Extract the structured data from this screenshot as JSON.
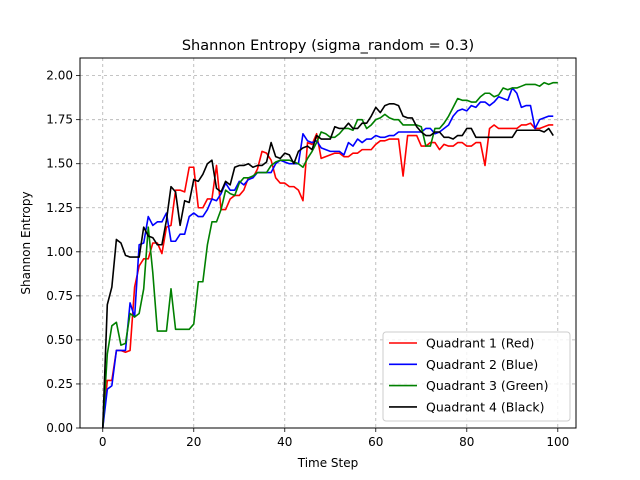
{
  "chart_data": {
    "type": "line",
    "title": "Shannon Entropy (sigma_random = 0.3)",
    "xlabel": "Time Step",
    "ylabel": "Shannon Entropy",
    "xlim": [
      -5,
      104
    ],
    "ylim": [
      0,
      2.1
    ],
    "xticks": [
      0,
      20,
      40,
      60,
      80,
      100
    ],
    "xtick_labels": [
      "0",
      "20",
      "40",
      "60",
      "80",
      "100"
    ],
    "yticks": [
      0,
      0.25,
      0.5,
      0.75,
      1.0,
      1.25,
      1.5,
      1.75,
      2.0
    ],
    "ytick_labels": [
      "0.00",
      "0.25",
      "0.50",
      "0.75",
      "1.00",
      "1.25",
      "1.50",
      "1.75",
      "2.00"
    ],
    "grid": true,
    "legend_position": "lower-right",
    "series": [
      {
        "name": "Quadrant 1 (Red)",
        "color": "#ff0000",
        "values": [
          0,
          0.27,
          0.27,
          0.44,
          0.44,
          0.43,
          0.44,
          0.8,
          0.92,
          0.96,
          0.96,
          1.05,
          1.05,
          0.99,
          1.14,
          1.15,
          1.35,
          1.35,
          1.34,
          1.48,
          1.48,
          1.25,
          1.25,
          1.3,
          1.3,
          1.49,
          1.24,
          1.24,
          1.3,
          1.32,
          1.32,
          1.35,
          1.42,
          1.42,
          1.47,
          1.57,
          1.56,
          1.52,
          1.42,
          1.39,
          1.39,
          1.37,
          1.37,
          1.35,
          1.29,
          1.62,
          1.61,
          1.67,
          1.53,
          1.54,
          1.55,
          1.56,
          1.56,
          1.54,
          1.54,
          1.56,
          1.56,
          1.58,
          1.58,
          1.58,
          1.61,
          1.63,
          1.63,
          1.64,
          1.64,
          1.64,
          1.43,
          1.66,
          1.66,
          1.66,
          1.6,
          1.6,
          1.62,
          1.62,
          1.58,
          1.61,
          1.6,
          1.6,
          1.62,
          1.62,
          1.6,
          1.6,
          1.62,
          1.62,
          1.49,
          1.7,
          1.72,
          1.7,
          1.7,
          1.7,
          1.7,
          1.7,
          1.72,
          1.72,
          1.73,
          1.7,
          1.7,
          1.71,
          1.72,
          1.72
        ]
      },
      {
        "name": "Quadrant 2 (Blue)",
        "color": "#0000ff",
        "values": [
          0,
          0.22,
          0.24,
          0.44,
          0.44,
          0.44,
          0.71,
          0.63,
          1.04,
          1.05,
          1.2,
          1.15,
          1.17,
          1.17,
          1.22,
          1.06,
          1.06,
          1.1,
          1.1,
          1.2,
          1.22,
          1.2,
          1.2,
          1.24,
          1.3,
          1.29,
          1.33,
          1.39,
          1.35,
          1.35,
          1.4,
          1.38,
          1.41,
          1.42,
          1.45,
          1.45,
          1.45,
          1.45,
          1.5,
          1.52,
          1.51,
          1.5,
          1.5,
          1.5,
          1.67,
          1.63,
          1.62,
          1.63,
          1.59,
          1.58,
          1.57,
          1.57,
          1.57,
          1.55,
          1.62,
          1.6,
          1.64,
          1.62,
          1.64,
          1.64,
          1.66,
          1.65,
          1.65,
          1.66,
          1.66,
          1.68,
          1.68,
          1.68,
          1.68,
          1.68,
          1.68,
          1.7,
          1.7,
          1.67,
          1.68,
          1.7,
          1.72,
          1.77,
          1.8,
          1.81,
          1.8,
          1.83,
          1.82,
          1.85,
          1.85,
          1.83,
          1.85,
          1.88,
          1.87,
          1.86,
          1.93,
          1.9,
          1.82,
          1.83,
          1.83,
          1.7,
          1.75,
          1.76,
          1.77,
          1.77
        ]
      },
      {
        "name": "Quadrant 3 (Green)",
        "color": "#008000",
        "values": [
          0,
          0.42,
          0.58,
          0.6,
          0.47,
          0.48,
          0.65,
          0.63,
          0.65,
          0.79,
          1.14,
          0.88,
          0.55,
          0.55,
          0.55,
          0.79,
          0.56,
          0.56,
          0.56,
          0.56,
          0.59,
          0.83,
          0.83,
          1.04,
          1.17,
          1.17,
          1.24,
          1.35,
          1.33,
          1.32,
          1.39,
          1.42,
          1.42,
          1.43,
          1.45,
          1.45,
          1.45,
          1.49,
          1.51,
          1.52,
          1.52,
          1.52,
          1.51,
          1.5,
          1.48,
          1.53,
          1.57,
          1.62,
          1.68,
          1.67,
          1.65,
          1.65,
          1.67,
          1.7,
          1.7,
          1.69,
          1.75,
          1.75,
          1.7,
          1.72,
          1.75,
          1.76,
          1.78,
          1.76,
          1.75,
          1.75,
          1.72,
          1.72,
          1.72,
          1.72,
          1.71,
          1.6,
          1.6,
          1.7,
          1.7,
          1.73,
          1.77,
          1.82,
          1.87,
          1.86,
          1.86,
          1.85,
          1.85,
          1.88,
          1.9,
          1.9,
          1.88,
          1.89,
          1.93,
          1.92,
          1.93,
          1.93,
          1.94,
          1.95,
          1.95,
          1.95,
          1.94,
          1.96,
          1.95,
          1.96,
          1.96
        ]
      },
      {
        "name": "Quadrant 4 (Black)",
        "color": "#000000",
        "values": [
          0,
          0.7,
          0.8,
          1.07,
          1.05,
          0.98,
          0.97,
          0.97,
          0.97,
          1.14,
          1.09,
          1.08,
          1.04,
          1.04,
          1.18,
          1.37,
          1.34,
          1.15,
          1.29,
          1.28,
          1.41,
          1.4,
          1.44,
          1.5,
          1.52,
          1.36,
          1.34,
          1.4,
          1.38,
          1.48,
          1.49,
          1.49,
          1.5,
          1.48,
          1.49,
          1.49,
          1.51,
          1.62,
          1.54,
          1.53,
          1.56,
          1.55,
          1.5,
          1.57,
          1.59,
          1.6,
          1.58,
          1.66,
          1.64,
          1.64,
          1.64,
          1.71,
          1.7,
          1.7,
          1.73,
          1.7,
          1.7,
          1.73,
          1.73,
          1.77,
          1.82,
          1.79,
          1.83,
          1.84,
          1.84,
          1.83,
          1.77,
          1.76,
          1.76,
          1.71,
          1.68,
          1.66,
          1.66,
          1.68,
          1.68,
          1.65,
          1.65,
          1.64,
          1.66,
          1.66,
          1.7,
          1.7,
          1.65,
          1.65,
          1.65,
          1.65,
          1.65,
          1.65,
          1.65,
          1.65,
          1.65,
          1.69,
          1.69,
          1.69,
          1.69,
          1.69,
          1.69,
          1.68,
          1.7,
          1.66
        ]
      }
    ]
  }
}
